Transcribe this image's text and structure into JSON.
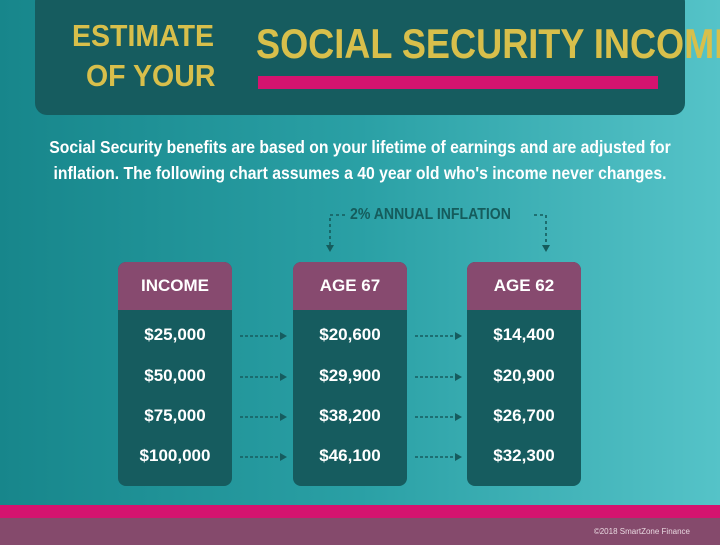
{
  "title": {
    "line1": "ESTIMATE",
    "line2": "OF YOUR",
    "main": "SOCIAL SECURITY INCOME"
  },
  "intro": [
    "Social Security benefits are based on your lifetime of earnings and are adjusted for",
    "inflation. The following chart assumes a 40 year old who's income never changes."
  ],
  "inflation_label": "2% ANNUAL INFLATION",
  "table": {
    "columns": [
      "INCOME",
      "AGE 67",
      "AGE 62"
    ],
    "rows": [
      [
        "$25,000",
        "$20,600",
        "$14,400"
      ],
      [
        "$50,000",
        "$29,900",
        "$20,900"
      ],
      [
        "$75,000",
        "$38,200",
        "$26,700"
      ],
      [
        "$100,000",
        "$46,100",
        "$32,300"
      ]
    ]
  },
  "footer": {
    "copyright": "©2018 SmartZone Finance"
  },
  "colors": {
    "dark_teal": "#165c5f",
    "gold": "#d8bf4b",
    "magenta": "#d5136f",
    "plum": "#874a6f"
  }
}
